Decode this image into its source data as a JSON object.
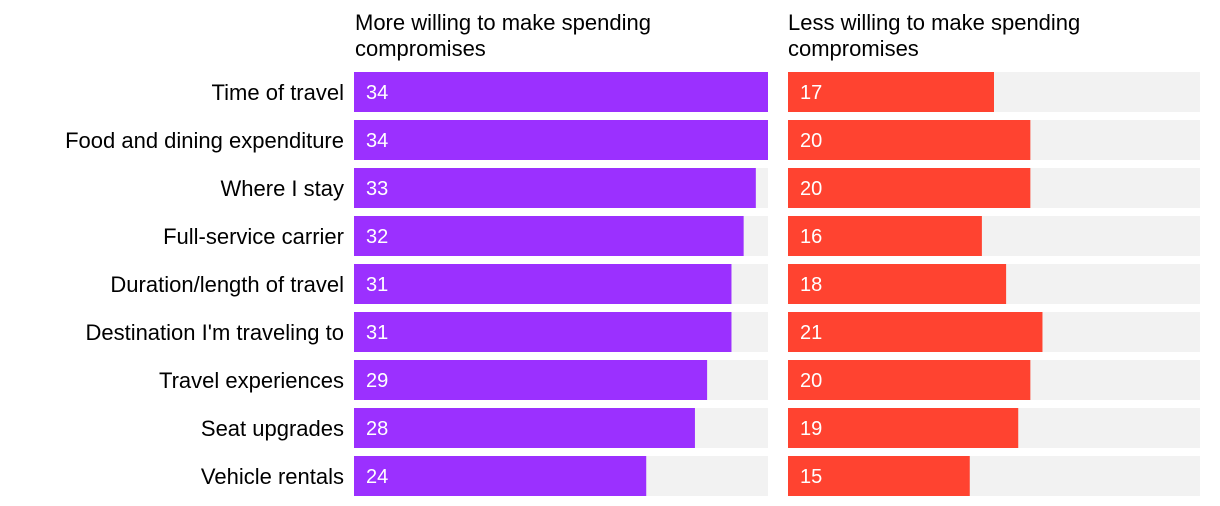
{
  "chart_data": {
    "type": "bar",
    "orientation": "horizontal",
    "categories": [
      "Time of travel",
      "Food and dining expenditure",
      "Where I stay",
      "Full-service carrier",
      "Duration/length of travel",
      "Destination I'm traveling to",
      "Travel experiences",
      "Seat upgrades",
      "Vehicle rentals"
    ],
    "series": [
      {
        "name": "More willing to make spending compromises",
        "name_lines": [
          "More willing to make spending",
          "compromises"
        ],
        "values": [
          34,
          34,
          33,
          32,
          31,
          31,
          29,
          28,
          24
        ],
        "color": "#9B30FF",
        "xlim": [
          0,
          34
        ]
      },
      {
        "name": "Less willing to make spending compromises",
        "name_lines": [
          "Less willing to make spending",
          "compromises"
        ],
        "values": [
          17,
          20,
          20,
          16,
          18,
          21,
          20,
          19,
          15
        ],
        "color": "#FF4330",
        "xlim": [
          0,
          34
        ]
      }
    ],
    "track_color": "#F2F2F2",
    "grid": false
  }
}
